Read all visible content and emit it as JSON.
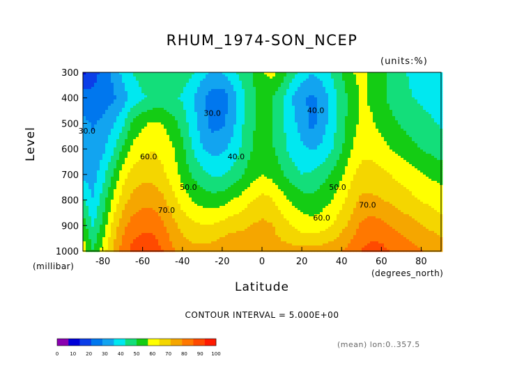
{
  "chart_data": {
    "type": "heatmap",
    "title": "RHUM_1974-SON_NCEP",
    "units": "(units:%)",
    "xlabel": "Latitude",
    "ylabel": "Level",
    "x_units": "(degrees_north)",
    "y_units": "(millibar)",
    "x_ticks": [
      -80,
      -60,
      -40,
      -20,
      0,
      20,
      40,
      60,
      80
    ],
    "x_tick_labels": [
      "-80",
      "-60",
      "-40",
      "-20",
      "0",
      "20",
      "40",
      "60",
      "80"
    ],
    "y_ticks": [
      300,
      400,
      500,
      600,
      700,
      800,
      900,
      1000
    ],
    "y_tick_labels": [
      "300",
      "400",
      "500",
      "600",
      "700",
      "800",
      "900",
      "1000"
    ],
    "xlim": [
      -90,
      90
    ],
    "ylim": [
      1000,
      300
    ],
    "contour_interval_text": "CONTOUR INTERVAL = 5.000E+00",
    "footnote": "(mean) lon:0..357.5",
    "contour_labels": [
      {
        "text": "30.0",
        "lat": -88,
        "lev": 540
      },
      {
        "text": "30.0",
        "lat": -25,
        "lev": 470
      },
      {
        "text": "40.0",
        "lat": 27,
        "lev": 460
      },
      {
        "text": "40.0",
        "lat": -13,
        "lev": 640
      },
      {
        "text": "60.0",
        "lat": -57,
        "lev": 640
      },
      {
        "text": "50.0",
        "lat": -37,
        "lev": 760
      },
      {
        "text": "70.0",
        "lat": -48,
        "lev": 850
      },
      {
        "text": "50.0",
        "lat": 38,
        "lev": 760
      },
      {
        "text": "60.0",
        "lat": 30,
        "lev": 880
      },
      {
        "text": "70.0",
        "lat": 53,
        "lev": 830
      }
    ],
    "colorbar": {
      "ticks": [
        0,
        10,
        20,
        30,
        40,
        50,
        60,
        70,
        80,
        90,
        100
      ],
      "tick_labels": [
        "0",
        "10",
        "20",
        "30",
        "40",
        "50",
        "60",
        "70",
        "80",
        "90",
        "100"
      ],
      "colors": [
        "#8a00b0",
        "#0000d8",
        "#0b3ee8",
        "#0077ee",
        "#12a4f0",
        "#00e8f0",
        "#13de7a",
        "#14cc14",
        "#ffff00",
        "#f4d600",
        "#f5a600",
        "#ff7800",
        "#ff4a00",
        "#ff1a00"
      ]
    },
    "lat": [
      -90,
      -85,
      -80,
      -75,
      -70,
      -65,
      -60,
      -55,
      -50,
      -45,
      -40,
      -35,
      -30,
      -25,
      -20,
      -15,
      -10,
      -5,
      0,
      5,
      10,
      15,
      20,
      25,
      30,
      35,
      40,
      45,
      50,
      55,
      60,
      65,
      70,
      75,
      80,
      85,
      90
    ],
    "lev": [
      300,
      400,
      500,
      600,
      700,
      800,
      900,
      1000
    ],
    "values": [
      [
        12,
        18,
        24,
        30,
        38,
        43,
        46,
        48,
        48,
        47,
        46,
        44,
        38,
        35,
        36,
        40,
        46,
        50,
        56,
        60,
        54,
        46,
        40,
        36,
        39,
        44,
        50,
        56,
        60,
        56,
        52,
        48,
        44,
        42,
        40,
        38,
        36
      ],
      [
        26,
        24,
        25,
        27,
        32,
        38,
        42,
        44,
        45,
        44,
        42,
        37,
        30,
        25,
        24,
        31,
        40,
        48,
        52,
        50,
        44,
        36,
        30,
        27,
        30,
        38,
        46,
        53,
        58,
        56,
        52,
        48,
        45,
        43,
        42,
        40,
        38
      ],
      [
        30,
        28,
        30,
        35,
        41,
        52,
        56,
        58,
        57,
        53,
        47,
        39,
        32,
        26,
        27,
        33,
        42,
        49,
        52,
        50,
        44,
        38,
        33,
        26,
        32,
        39,
        47,
        54,
        59,
        58,
        55,
        52,
        49,
        47,
        45,
        44,
        42
      ],
      [
        32,
        30,
        34,
        41,
        51,
        59,
        62,
        64,
        62,
        58,
        52,
        43,
        36,
        33,
        34,
        38,
        44,
        50,
        53,
        51,
        46,
        40,
        37,
        35,
        37,
        42,
        49,
        57,
        62,
        62,
        60,
        57,
        55,
        52,
        50,
        48,
        46
      ],
      [
        34,
        32,
        40,
        50,
        61,
        67,
        69,
        69,
        66,
        61,
        55,
        49,
        45,
        42,
        42,
        45,
        49,
        54,
        57,
        55,
        51,
        46,
        43,
        44,
        47,
        51,
        56,
        63,
        67,
        67,
        66,
        64,
        62,
        60,
        58,
        56,
        55
      ],
      [
        44,
        36,
        46,
        58,
        68,
        74,
        76,
        76,
        73,
        67,
        61,
        57,
        54,
        53,
        54,
        57,
        60,
        64,
        67,
        65,
        60,
        56,
        53,
        52,
        54,
        57,
        62,
        68,
        73,
        73,
        72,
        70,
        68,
        66,
        64,
        62,
        60
      ],
      [
        54,
        42,
        52,
        66,
        76,
        82,
        84,
        84,
        80,
        74,
        69,
        66,
        65,
        65,
        67,
        69,
        70,
        72,
        73,
        72,
        68,
        64,
        61,
        60,
        61,
        64,
        69,
        74,
        80,
        82,
        81,
        78,
        76,
        74,
        72,
        70,
        68
      ],
      [
        62,
        50,
        60,
        72,
        82,
        88,
        90,
        90,
        86,
        80,
        76,
        74,
        74,
        75,
        77,
        78,
        77,
        76,
        74,
        74,
        74,
        74,
        74,
        74,
        75,
        76,
        78,
        82,
        86,
        88,
        88,
        85,
        83,
        81,
        79,
        77,
        75
      ]
    ]
  }
}
